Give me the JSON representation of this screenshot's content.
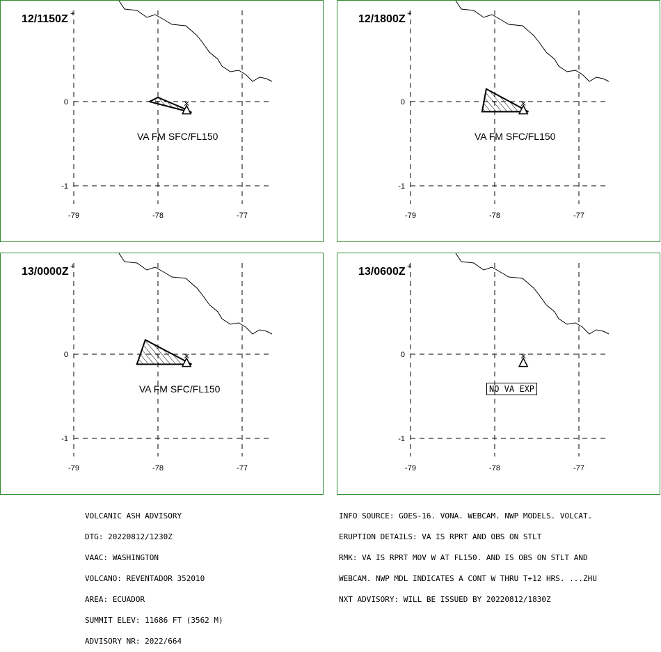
{
  "panels": [
    {
      "id": "p1",
      "time": "12/1150Z",
      "label": "VA FM SFC/FL150",
      "label_boxed": false
    },
    {
      "id": "p2",
      "time": "12/1800Z",
      "label": "VA FM SFC/FL150",
      "label_boxed": false
    },
    {
      "id": "p3",
      "time": "13/0000Z",
      "label": "VA FM SFC/FL150",
      "label_boxed": false
    },
    {
      "id": "p4",
      "time": "13/0600Z",
      "label": "NO VA EXP",
      "label_boxed": true
    }
  ],
  "axes": {
    "lat_ticks": [
      "0",
      "-1"
    ],
    "lon_ticks": [
      "-79",
      "-78",
      "-77"
    ],
    "lat_values": [
      0,
      -1
    ],
    "lon_values": [
      -79,
      -78,
      -77
    ]
  },
  "ash_polygons": {
    "p1": [
      [
        -78.1,
        0.0
      ],
      [
        -77.6,
        -0.13
      ],
      [
        -77.65,
        -0.1
      ],
      [
        -78.0,
        0.05
      ]
    ],
    "p2": [
      [
        -78.15,
        -0.12
      ],
      [
        -77.6,
        -0.12
      ],
      [
        -78.1,
        0.15
      ]
    ],
    "p3": [
      [
        -78.25,
        -0.12
      ],
      [
        -77.6,
        -0.12
      ],
      [
        -78.15,
        0.17
      ]
    ]
  },
  "volcano": {
    "lon": -77.66,
    "lat": -0.08,
    "icon": "volcano-triangle-icon"
  },
  "colors": {
    "panel_border": "#2e8b2e",
    "grid": "#000000"
  },
  "advisory_left": [
    "VOLCANIC ASH ADVISORY",
    "DTG: 20220812/1230Z",
    "VAAC: WASHINGTON",
    "VOLCANO: REVENTADOR 352010",
    "AREA: ECUADOR",
    "SUMMIT ELEV: 11686 FT (3562 M)",
    "ADVISORY NR: 2022/664"
  ],
  "advisory_right": [
    "INFO SOURCE: GOES-16. VONA. WEBCAM. NWP MODELS. VOLCAT.",
    "ERUPTION DETAILS: VA IS RPRT AND OBS ON STLT",
    "RMK: VA IS RPRT MOV W AT FL150. AND IS OBS ON STLT AND",
    "WEBCAM. NWP MDL INDICATES A CONT W THRU T+12 HRS. ...ZHU",
    "NXT ADVISORY: WILL BE ISSUED BY 20220812/1830Z"
  ]
}
